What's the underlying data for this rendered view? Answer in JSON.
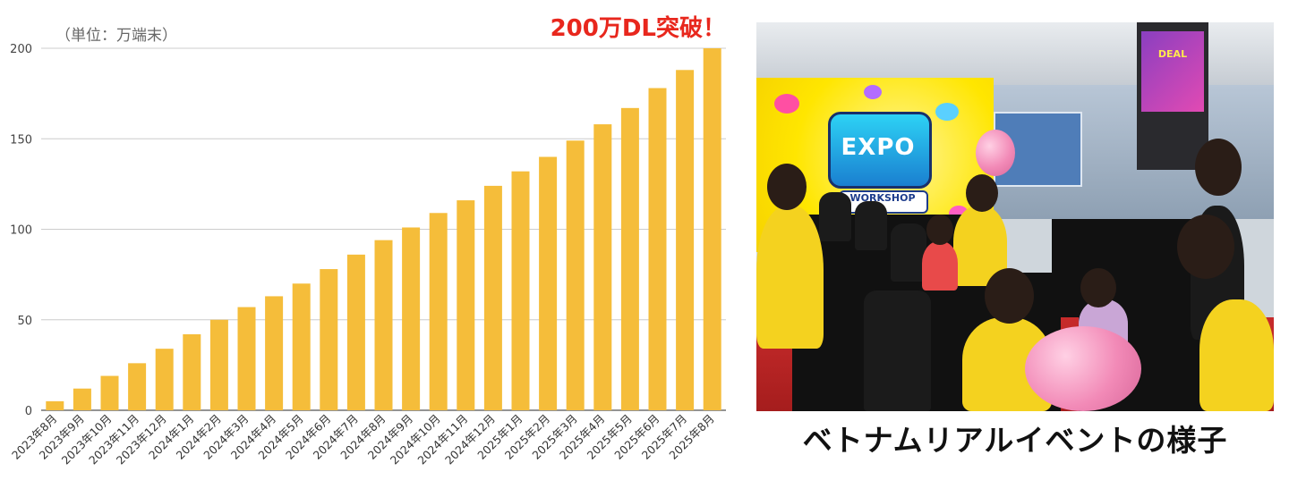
{
  "chart_data": {
    "type": "bar",
    "unit_label": "（単位：万端末）",
    "headline": "200万DL突破！",
    "ylim": [
      0,
      200
    ],
    "yticks": [
      0,
      50,
      100,
      150,
      200
    ],
    "grid": true,
    "bar_color": "#f5bd3a",
    "headline_color": "#e8271d",
    "categories": [
      "2023年8月",
      "2023年9月",
      "2023年10月",
      "2023年11月",
      "2023年12月",
      "2024年1月",
      "2024年2月",
      "2024年3月",
      "2024年4月",
      "2024年5月",
      "2024年6月",
      "2024年7月",
      "2024年8月",
      "2024年9月",
      "2024年10月",
      "2024年11月",
      "2024年12月",
      "2025年1月",
      "2025年2月",
      "2025年3月",
      "2025年4月",
      "2025年5月",
      "2025年6月",
      "2025年7月",
      "2025年8月"
    ],
    "values": [
      5,
      12,
      19,
      26,
      34,
      42,
      50,
      57,
      63,
      70,
      78,
      86,
      94,
      101,
      109,
      116,
      124,
      132,
      140,
      149,
      158,
      167,
      178,
      188,
      200
    ]
  },
  "photo": {
    "icon": "event-photo",
    "caption": "ベトナムリアルイベントの様子",
    "expo_logo": "EXPO",
    "workshop_label": "WORKSHOP",
    "screen_text": "DEAL"
  }
}
